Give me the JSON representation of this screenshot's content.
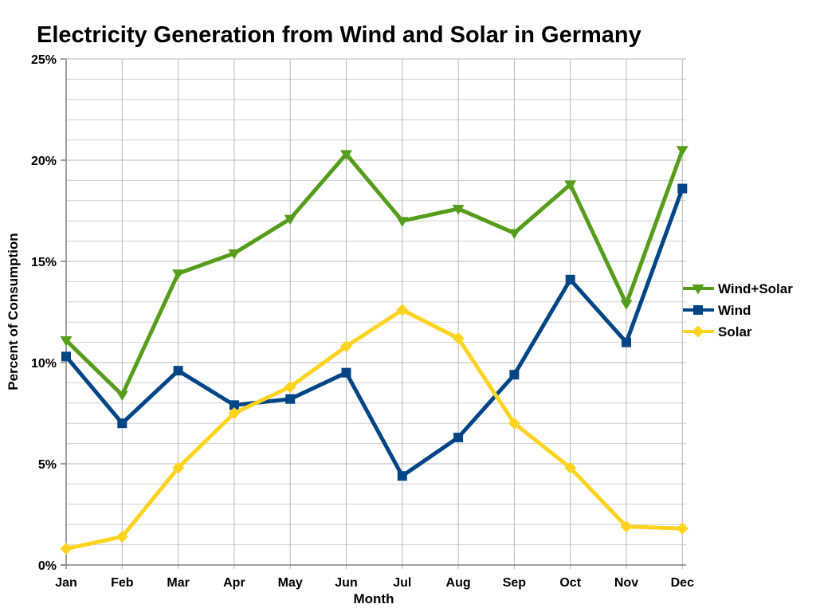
{
  "chart_data": {
    "type": "line",
    "title": "Electricity Generation from Wind and Solar in Germany",
    "xlabel": "Month",
    "ylabel": "Percent of Consumption",
    "categories": [
      "Jan",
      "Feb",
      "Mar",
      "Apr",
      "May",
      "Jun",
      "Jul",
      "Aug",
      "Sep",
      "Oct",
      "Nov",
      "Dec"
    ],
    "series": [
      {
        "name": "Wind+Solar",
        "color": "#579D1C",
        "marker": "triangle-down",
        "values": [
          11.1,
          8.4,
          14.4,
          15.4,
          17.1,
          20.3,
          17.0,
          17.6,
          16.4,
          18.8,
          12.9,
          20.5
        ]
      },
      {
        "name": "Wind",
        "color": "#004586",
        "marker": "square",
        "values": [
          10.3,
          7.0,
          9.6,
          7.9,
          8.2,
          9.5,
          4.4,
          6.3,
          9.4,
          14.1,
          11.0,
          18.6
        ]
      },
      {
        "name": "Solar",
        "color": "#FFD320",
        "marker": "diamond",
        "values": [
          0.8,
          1.4,
          4.8,
          7.5,
          8.8,
          10.8,
          12.6,
          11.2,
          7.0,
          4.8,
          1.9,
          1.8
        ]
      }
    ],
    "ylim": [
      0,
      25
    ],
    "ytick_step": 5,
    "minor_ytick_step": 1,
    "ytick_labels": [
      "0%",
      "5%",
      "10%",
      "15%",
      "20%",
      "25%"
    ],
    "grid": true,
    "legend_position": "right",
    "background_color": "#FFFFFF",
    "grid_colors": {
      "minor": "#D0D0D0",
      "major": "#B8B8B8",
      "axis": "#808080"
    }
  }
}
